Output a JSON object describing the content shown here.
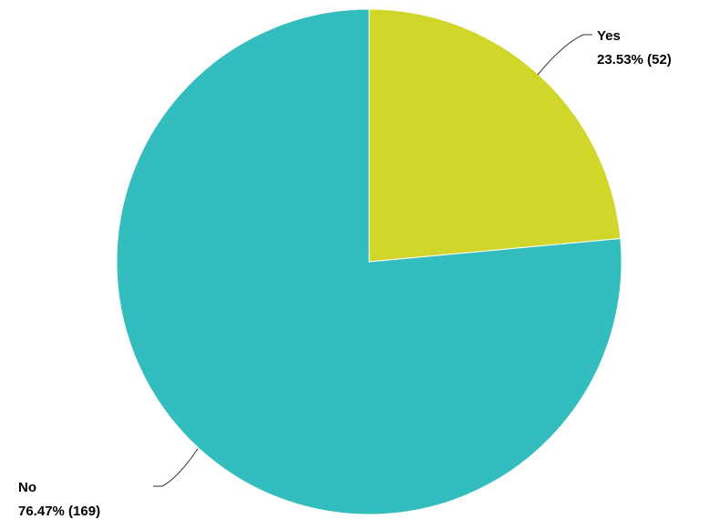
{
  "chart_data": {
    "type": "pie",
    "title": "",
    "slices": [
      {
        "label": "Yes",
        "percent_text": "23.53% (52)",
        "percent": 23.53,
        "count": 52,
        "color": "#d0d62a"
      },
      {
        "label": "No",
        "percent_text": "76.47% (169)",
        "percent": 76.47,
        "count": 169,
        "color": "#33bdbf"
      }
    ],
    "start_angle": "12 o'clock",
    "direction": "clockwise",
    "legend": "none"
  }
}
